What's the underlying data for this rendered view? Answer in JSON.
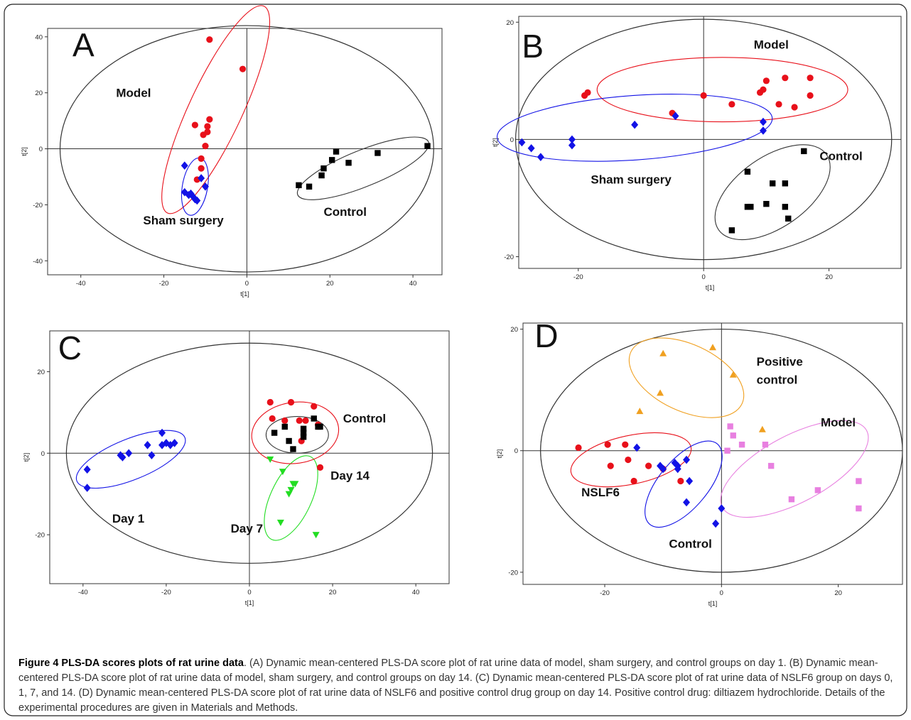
{
  "figure": {
    "caption_title": "Figure 4 PLS-DA scores plots of rat urine data",
    "caption_text": ". (A) Dynamic mean-centered PLS-DA score plot of rat urine data of model, sham surgery, and control groups on day 1. (B) Dynamic mean-centered PLS-DA score plot of rat urine data of model, sham surgery, and control groups on day 14. (C) Dynamic mean-centered PLS-DA score plot of rat urine data of NSLF6 group on days 0, 1, 7, and 14. (D) Dynamic mean-centered PLS-DA score plot of rat urine data of NSLF6 and positive control drug group on day 14. Positive control drug: diltiazem hydrochloride. Details of the experimental procedures are given in Materials and Methods."
  },
  "colors": {
    "red": "#e8101a",
    "blue": "#1212e6",
    "black": "#000000",
    "green": "#22dd22",
    "orange": "#f0a020",
    "pink": "#e880e0",
    "frame": "#333333"
  },
  "chart_data": [
    {
      "panel": "A",
      "type": "scatter",
      "xlabel": "t[1]",
      "ylabel": "t[2]",
      "xlim": [
        -48,
        47
      ],
      "ylim": [
        -45,
        43
      ],
      "xticks": [
        -40,
        -20,
        0,
        20,
        40
      ],
      "yticks": [
        -40,
        -20,
        0,
        20,
        40
      ],
      "grid": false,
      "ellipse": {
        "cx": 0,
        "cy": 0,
        "rx": 45,
        "ry": 44
      },
      "series": [
        {
          "name": "Model",
          "marker": "circle",
          "color": "#e8101a",
          "points": [
            [
              -9,
              39
            ],
            [
              -1,
              28.5
            ],
            [
              -9,
              10.5
            ],
            [
              -9.5,
              8
            ],
            [
              -12.5,
              8.5
            ],
            [
              -9.5,
              6
            ],
            [
              -10.5,
              5
            ],
            [
              -10,
              1
            ],
            [
              -11,
              -3.5
            ],
            [
              -11,
              -7
            ],
            [
              -12,
              -11
            ]
          ]
        },
        {
          "name": "Sham surgery",
          "marker": "diamond",
          "color": "#1212e6",
          "points": [
            [
              -15,
              -6
            ],
            [
              -11,
              -10.5
            ],
            [
              -10,
              -13.5
            ],
            [
              -15,
              -15.5
            ],
            [
              -14,
              -16.5
            ],
            [
              -13.5,
              -16
            ],
            [
              -13,
              -17
            ],
            [
              -12.5,
              -18
            ],
            [
              -12,
              -18.5
            ]
          ]
        },
        {
          "name": "Control",
          "marker": "square",
          "color": "#000000",
          "points": [
            [
              43.5,
              1
            ],
            [
              31.5,
              -1.5
            ],
            [
              21.5,
              -1
            ],
            [
              20.5,
              -4
            ],
            [
              24.5,
              -5
            ],
            [
              18.5,
              -7
            ],
            [
              18,
              -9.5
            ],
            [
              12.5,
              -13
            ],
            [
              15,
              -13.5
            ]
          ]
        }
      ],
      "ellipses": [
        {
          "group": "Model",
          "cx": -7.5,
          "cy": 14,
          "rx": 27.5,
          "ry": 9.5,
          "angle": -65,
          "color": "#e8101a"
        },
        {
          "group": "Sham surgery",
          "cx": -12.5,
          "cy": -13.5,
          "rx": 7,
          "ry": 4.5,
          "angle": -80,
          "color": "#1212e6"
        },
        {
          "group": "Control",
          "cx": 28,
          "cy": -7,
          "rx": 17,
          "ry": 6.5,
          "angle": -22,
          "color": "#333333"
        }
      ],
      "annotations": [
        {
          "text": "A",
          "size": "big",
          "x": -42,
          "y": 33
        },
        {
          "text": "Model",
          "x": -31.5,
          "y": 18.5
        },
        {
          "text": "Sham surgery",
          "x": -25,
          "y": -27
        },
        {
          "text": "Control",
          "x": 18.5,
          "y": -24
        }
      ]
    },
    {
      "panel": "B",
      "type": "scatter",
      "xlabel": "t[1]",
      "ylabel": "t[2]",
      "xlim": [
        -29.5,
        31.5
      ],
      "ylim": [
        -22,
        21
      ],
      "xticks": [
        -20,
        0,
        20
      ],
      "yticks": [
        -20,
        0,
        20
      ],
      "grid": false,
      "ellipse": {
        "cx": 0,
        "cy": 0,
        "rx": 30,
        "ry": 20.5
      },
      "series": [
        {
          "name": "Model",
          "marker": "circle",
          "color": "#e8101a",
          "points": [
            [
              -18.5,
              8
            ],
            [
              -19,
              7.5
            ],
            [
              -5,
              4.5
            ],
            [
              0,
              7.5
            ],
            [
              4.5,
              6
            ],
            [
              9,
              8
            ],
            [
              9.5,
              8.5
            ],
            [
              10,
              10
            ],
            [
              13,
              10.5
            ],
            [
              12,
              6
            ],
            [
              14.5,
              5.5
            ],
            [
              17,
              10.5
            ],
            [
              17,
              7.5
            ]
          ]
        },
        {
          "name": "Sham surgery",
          "marker": "diamond",
          "color": "#1212e6",
          "points": [
            [
              -29,
              -0.5
            ],
            [
              -27.5,
              -1.5
            ],
            [
              -26,
              -3
            ],
            [
              -21,
              0
            ],
            [
              -21,
              -1
            ],
            [
              -11,
              2.5
            ],
            [
              -4.5,
              4
            ],
            [
              9.5,
              3
            ],
            [
              9.5,
              1.5
            ]
          ]
        },
        {
          "name": "Control",
          "marker": "square",
          "color": "#000000",
          "points": [
            [
              16,
              -2
            ],
            [
              7,
              -5.5
            ],
            [
              11,
              -7.5
            ],
            [
              13,
              -7.5
            ],
            [
              7,
              -11.5
            ],
            [
              7.5,
              -11.5
            ],
            [
              10,
              -11
            ],
            [
              13,
              -11.5
            ],
            [
              13.5,
              -13.5
            ],
            [
              4.5,
              -15.5
            ]
          ]
        }
      ],
      "ellipses": [
        {
          "group": "Model",
          "cx": 3,
          "cy": 8.5,
          "rx": 20,
          "ry": 5.5,
          "angle": 0,
          "color": "#e8101a"
        },
        {
          "group": "Sham surgery",
          "cx": -11,
          "cy": 2,
          "rx": 22,
          "ry": 5.5,
          "angle": -4,
          "color": "#1212e6"
        },
        {
          "group": "Control",
          "cx": 11,
          "cy": -9,
          "rx": 10.5,
          "ry": 6,
          "angle": -35,
          "color": "#333333"
        }
      ],
      "annotations": [
        {
          "text": "B",
          "size": "big",
          "x": -29,
          "y": 14
        },
        {
          "text": "Model",
          "x": 8,
          "y": 15.5
        },
        {
          "text": "Sham surgery",
          "x": -18,
          "y": -7.5
        },
        {
          "text": "Control",
          "x": 18.5,
          "y": -3.5
        }
      ]
    },
    {
      "panel": "C",
      "type": "scatter",
      "xlabel": "t[1]",
      "ylabel": "t[2]",
      "xlim": [
        -48,
        48
      ],
      "ylim": [
        -32,
        30
      ],
      "xticks": [
        -40,
        -20,
        0,
        20,
        40
      ],
      "yticks": [
        -20,
        0,
        20
      ],
      "grid": false,
      "ellipse": {
        "cx": 0,
        "cy": 0,
        "rx": 44,
        "ry": 27
      },
      "series": [
        {
          "name": "Day 1",
          "marker": "diamond",
          "color": "#1212e6",
          "points": [
            [
              -39,
              -4
            ],
            [
              -39,
              -8.5
            ],
            [
              -31,
              -0.5
            ],
            [
              -30.5,
              -1
            ],
            [
              -29,
              0
            ],
            [
              -24.5,
              2
            ],
            [
              -23.5,
              -0.5
            ],
            [
              -21,
              5
            ],
            [
              -21,
              2
            ],
            [
              -20,
              2.5
            ],
            [
              -19,
              2
            ],
            [
              -18,
              2.5
            ]
          ]
        },
        {
          "name": "Day 7",
          "marker": "triangle-down",
          "color": "#22dd22",
          "points": [
            [
              5,
              -1.5
            ],
            [
              8,
              -4.5
            ],
            [
              11,
              -7.5
            ],
            [
              10.5,
              -7.5
            ],
            [
              10,
              -9
            ],
            [
              9.5,
              -10
            ],
            [
              7.5,
              -17
            ],
            [
              16,
              -20
            ]
          ]
        },
        {
          "name": "Day 14",
          "marker": "circle",
          "color": "#e8101a",
          "points": [
            [
              5,
              12.5
            ],
            [
              5.5,
              8.5
            ],
            [
              8.5,
              8
            ],
            [
              10,
              12.5
            ],
            [
              15.5,
              11.5
            ],
            [
              13.5,
              8
            ],
            [
              12,
              8
            ],
            [
              12.5,
              3
            ],
            [
              16.5,
              7
            ],
            [
              17,
              -3.5
            ]
          ]
        },
        {
          "name": "Control",
          "marker": "square",
          "color": "#000000",
          "points": [
            [
              6,
              5
            ],
            [
              8.5,
              6.5
            ],
            [
              9.5,
              3
            ],
            [
              10.5,
              1
            ],
            [
              13,
              6
            ],
            [
              13,
              5
            ],
            [
              13,
              4
            ],
            [
              15.5,
              8.5
            ],
            [
              16.5,
              6.5
            ],
            [
              17,
              6.5
            ]
          ]
        }
      ],
      "ellipses": [
        {
          "group": "Day 1",
          "cx": -28.5,
          "cy": -1.5,
          "rx": 14,
          "ry": 5,
          "angle": -22,
          "color": "#1212e6"
        },
        {
          "group": "Day 7",
          "cx": 10,
          "cy": -11,
          "rx": 11,
          "ry": 5,
          "angle": -65,
          "color": "#22dd22"
        },
        {
          "group": "Day 14",
          "cx": 11,
          "cy": 5,
          "rx": 10.5,
          "ry": 7.5,
          "angle": -8,
          "color": "#e8101a"
        },
        {
          "group": "Control",
          "cx": 11.5,
          "cy": 4.5,
          "rx": 7.5,
          "ry": 4.5,
          "angle": 0,
          "color": "#333333"
        }
      ],
      "annotations": [
        {
          "text": "C",
          "size": "big",
          "x": -46,
          "y": 23
        },
        {
          "text": "Control",
          "x": 22.5,
          "y": 7.5
        },
        {
          "text": "Day 14",
          "x": 19.5,
          "y": -6.5
        },
        {
          "text": "Day 1",
          "x": -33,
          "y": -17
        },
        {
          "text": "Day 7",
          "x": -4.5,
          "y": -19.5
        }
      ]
    },
    {
      "panel": "D",
      "type": "scatter",
      "xlabel": "t[1]",
      "ylabel": "t[2]",
      "xlim": [
        -34,
        31
      ],
      "ylim": [
        -22,
        21
      ],
      "xticks": [
        -20,
        0,
        20
      ],
      "yticks": [
        -20,
        0,
        20
      ],
      "grid": false,
      "ellipse": {
        "cx": 0,
        "cy": 0,
        "rx": 31,
        "ry": 20
      },
      "series": [
        {
          "name": "NSLF6",
          "marker": "circle",
          "color": "#e8101a",
          "points": [
            [
              -24.5,
              0.5
            ],
            [
              -19.5,
              1
            ],
            [
              -16.5,
              1
            ],
            [
              -16,
              -1.5
            ],
            [
              -19,
              -2.5
            ],
            [
              -15,
              -5
            ],
            [
              -12.5,
              -2.5
            ],
            [
              -10,
              -3
            ],
            [
              -7,
              -5
            ]
          ]
        },
        {
          "name": "Control",
          "marker": "diamond",
          "color": "#1212e6",
          "points": [
            [
              -14.5,
              0.5
            ],
            [
              -10.5,
              -2.5
            ],
            [
              -10,
              -3
            ],
            [
              -8,
              -2
            ],
            [
              -7.5,
              -2.5
            ],
            [
              -7.5,
              -3
            ],
            [
              -6,
              -1.5
            ],
            [
              -5.5,
              -5
            ],
            [
              -6,
              -8.5
            ],
            [
              0,
              -9.5
            ],
            [
              -1,
              -12
            ]
          ]
        },
        {
          "name": "Positive control",
          "marker": "triangle-up",
          "color": "#f0a020",
          "points": [
            [
              -10,
              16
            ],
            [
              -1.5,
              17
            ],
            [
              2,
              12.5
            ],
            [
              -10.5,
              9.5
            ],
            [
              -14,
              6.5
            ],
            [
              7,
              3.5
            ]
          ]
        },
        {
          "name": "Model",
          "marker": "square",
          "color": "#e880e0",
          "points": [
            [
              1.5,
              4
            ],
            [
              2,
              2.5
            ],
            [
              3.5,
              1
            ],
            [
              1,
              0
            ],
            [
              7.5,
              1
            ],
            [
              8.5,
              -2.5
            ],
            [
              12,
              -8
            ],
            [
              16.5,
              -6.5
            ],
            [
              23.5,
              -5
            ],
            [
              23.5,
              -9.5
            ]
          ]
        }
      ],
      "ellipses": [
        {
          "group": "NSLF6",
          "cx": -15.5,
          "cy": -1.5,
          "rx": 10.5,
          "ry": 4,
          "angle": -12,
          "color": "#e8101a"
        },
        {
          "group": "Control",
          "cx": -6.5,
          "cy": -5.5,
          "rx": 9,
          "ry": 4,
          "angle": -50,
          "color": "#1212e6"
        },
        {
          "group": "Positive control",
          "cx": -6,
          "cy": 12,
          "rx": 10.5,
          "ry": 5.5,
          "angle": 25,
          "color": "#f0a020"
        },
        {
          "group": "Model",
          "cx": 12.5,
          "cy": -3,
          "rx": 14,
          "ry": 5.5,
          "angle": -28,
          "color": "#e880e0"
        }
      ],
      "annotations": [
        {
          "text": "D",
          "size": "big",
          "x": -32,
          "y": 17
        },
        {
          "text": "Positive",
          "x": 6,
          "y": 14
        },
        {
          "text": "control",
          "x": 6,
          "y": 11
        },
        {
          "text": "Model",
          "x": 17,
          "y": 4
        },
        {
          "text": "NSLF6",
          "x": -24,
          "y": -7.5
        },
        {
          "text": "Control",
          "x": -9,
          "y": -16
        }
      ]
    }
  ]
}
